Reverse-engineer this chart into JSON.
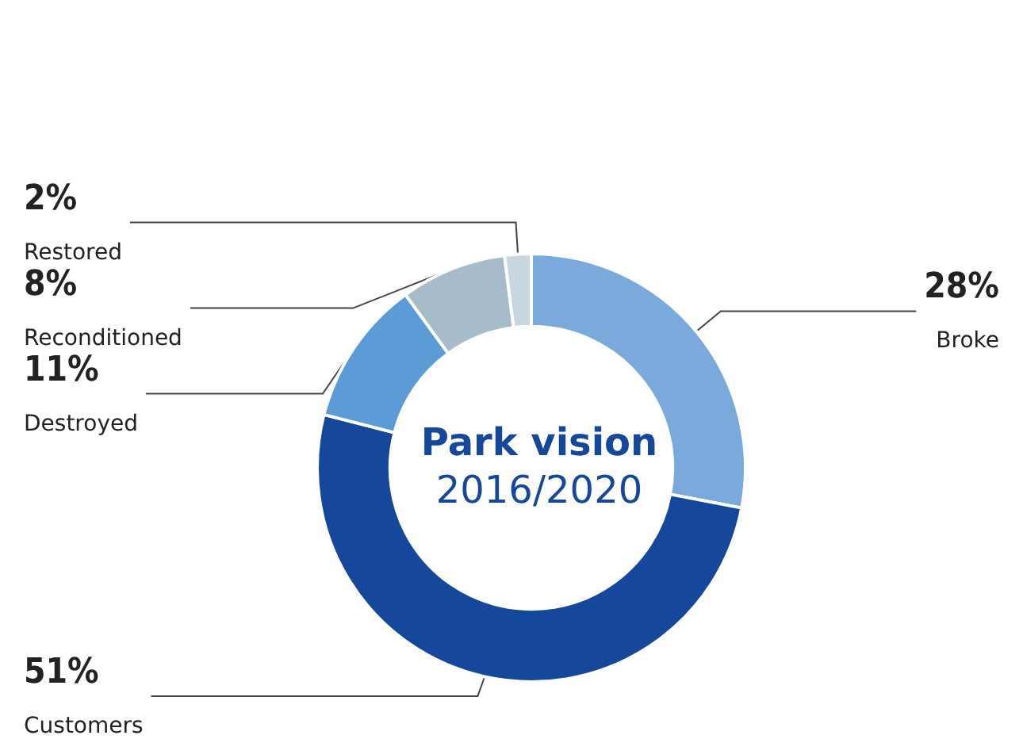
{
  "chart_data": {
    "type": "donut",
    "title": "Park vision",
    "subtitle": "2016/2020",
    "categories": [
      "Broke",
      "Customers",
      "Destroyed",
      "Reconditioned",
      "Restored"
    ],
    "values": [
      28,
      51,
      11,
      8,
      2
    ],
    "value_labels": [
      "28%",
      "51%",
      "11%",
      "8%",
      "2%"
    ],
    "colors": [
      "#7aaadc",
      "#15489a",
      "#5b9cd6",
      "#a6bcca",
      "#c8d6e0"
    ],
    "legend": false
  }
}
